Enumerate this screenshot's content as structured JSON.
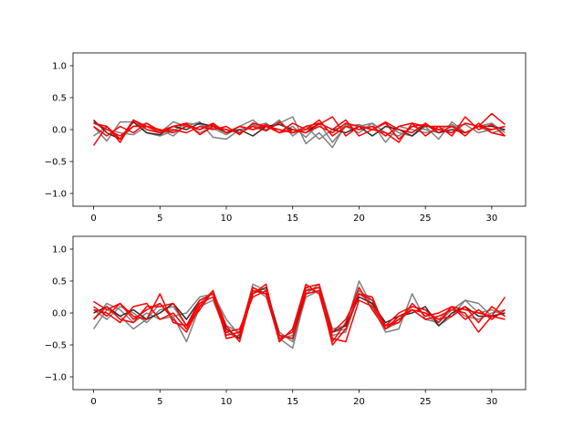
{
  "chart_data": [
    {
      "type": "line",
      "xlim": [
        -1.55,
        32.55
      ],
      "ylim": [
        -1.2,
        1.2
      ],
      "xticks": [
        0,
        5,
        10,
        15,
        20,
        25,
        30
      ],
      "xtick_labels": [
        "0",
        "5",
        "10",
        "15",
        "20",
        "25",
        "30"
      ],
      "yticks": [
        -1.0,
        -0.5,
        0.0,
        0.5,
        1.0
      ],
      "ytick_labels": [
        "−1.0",
        "−0.5",
        "0.0",
        "0.5",
        "1.0"
      ],
      "grid": false,
      "series": [
        {
          "color": "#808080",
          "values": [
            0.05,
            -0.18,
            0.12,
            0.12,
            -0.05,
            -0.1,
            -0.02,
            0.1,
            0.08,
            0.02,
            -0.08,
            0.05,
            0.15,
            -0.02,
            0.1,
            0.2,
            -0.22,
            -0.05,
            -0.28,
            0.08,
            0.05,
            0.1,
            -0.2,
            0.05,
            0.0,
            -0.05,
            0.0,
            0.08,
            -0.05,
            0.05,
            -0.05,
            0.0
          ]
        },
        {
          "color": "#808080",
          "values": [
            -0.1,
            0.05,
            -0.15,
            0.05,
            0.1,
            -0.05,
            0.12,
            0.05,
            0.12,
            -0.12,
            -0.15,
            0.0,
            0.05,
            0.1,
            -0.05,
            0.05,
            -0.12,
            0.1,
            -0.2,
            0.05,
            0.08,
            0.0,
            0.1,
            -0.05,
            -0.1,
            0.05,
            -0.15,
            0.12,
            -0.05,
            0.05,
            0.1,
            -0.05
          ]
        },
        {
          "color": "#808080",
          "values": [
            0.1,
            0.0,
            -0.05,
            -0.08,
            0.05,
            0.0,
            -0.1,
            0.08,
            -0.05,
            0.05,
            0.0,
            -0.05,
            0.08,
            0.0,
            0.15,
            -0.1,
            0.05,
            -0.15,
            0.0,
            0.05,
            -0.05,
            0.1,
            -0.05,
            -0.1,
            0.05,
            0.0,
            -0.05,
            0.05,
            0.08,
            -0.05,
            0.0,
            0.05
          ]
        },
        {
          "color": "#2b2b2b",
          "values": [
            0.15,
            -0.05,
            -0.15,
            0.12,
            -0.05,
            -0.08,
            0.05,
            0.0,
            0.1,
            0.05,
            -0.05,
            0.0,
            -0.1,
            0.05,
            0.08,
            0.0,
            -0.05,
            0.1,
            0.0,
            -0.05,
            0.05,
            -0.1,
            0.05,
            0.0,
            -0.1,
            0.08,
            -0.05,
            0.0,
            -0.05,
            0.05,
            0.05,
            0.0
          ]
        },
        {
          "color": "#ff0000",
          "values": [
            0.1,
            0.05,
            -0.15,
            0.15,
            0.05,
            0.0,
            -0.05,
            0.05,
            0.0,
            0.1,
            -0.05,
            0.05,
            0.0,
            0.08,
            -0.05,
            0.1,
            0.0,
            0.08,
            0.2,
            -0.1,
            0.05,
            0.0,
            0.1,
            -0.15,
            0.05,
            0.08,
            0.0,
            -0.05,
            0.1,
            0.05,
            0.0,
            0.05
          ]
        },
        {
          "color": "#ff0000",
          "values": [
            -0.25,
            0.05,
            -0.2,
            0.15,
            0.0,
            -0.05,
            0.05,
            0.1,
            -0.08,
            0.05,
            0.0,
            -0.05,
            0.05,
            -0.02,
            0.12,
            -0.05,
            0.05,
            0.1,
            0.0,
            0.15,
            -0.1,
            0.0,
            -0.05,
            -0.2,
            0.1,
            0.05,
            0.05,
            -0.1,
            0.2,
            0.0,
            0.08,
            -0.1
          ]
        },
        {
          "color": "#ff0000",
          "values": [
            0.05,
            -0.1,
            0.05,
            -0.05,
            0.1,
            -0.02,
            0.05,
            0.08,
            0.0,
            0.08,
            -0.05,
            0.05,
            0.0,
            0.05,
            -0.05,
            0.0,
            -0.05,
            0.05,
            -0.05,
            0.1,
            0.05,
            0.0,
            0.12,
            0.0,
            -0.05,
            0.1,
            -0.05,
            0.05,
            -0.05,
            0.05,
            0.25,
            0.08
          ]
        },
        {
          "color": "#ff0000",
          "values": [
            0.12,
            0.0,
            -0.1,
            0.05,
            0.05,
            -0.05,
            0.0,
            -0.05,
            0.05,
            0.0,
            0.05,
            -0.08,
            0.1,
            0.05,
            0.0,
            -0.05,
            0.0,
            0.15,
            -0.1,
            0.05,
            0.0,
            0.05,
            -0.1,
            0.05,
            0.1,
            -0.1,
            0.05,
            0.05,
            -0.1,
            0.1,
            -0.05,
            -0.1
          ]
        }
      ]
    },
    {
      "type": "line",
      "xlim": [
        -1.55,
        32.55
      ],
      "ylim": [
        -1.2,
        1.2
      ],
      "xticks": [
        0,
        5,
        10,
        15,
        20,
        25,
        30
      ],
      "xtick_labels": [
        "0",
        "5",
        "10",
        "15",
        "20",
        "25",
        "30"
      ],
      "yticks": [
        -1.0,
        -0.5,
        0.0,
        0.5,
        1.0
      ],
      "ytick_labels": [
        "−1.0",
        "−0.5",
        "0.0",
        "0.5",
        "1.0"
      ],
      "grid": false,
      "series": [
        {
          "color": "#808080",
          "values": [
            -0.25,
            0.05,
            -0.05,
            -0.25,
            -0.1,
            0.15,
            -0.05,
            -0.45,
            0.1,
            0.2,
            -0.3,
            -0.4,
            0.4,
            0.25,
            -0.4,
            -0.55,
            0.3,
            0.45,
            -0.25,
            -0.2,
            0.5,
            0.1,
            -0.3,
            -0.25,
            0.3,
            -0.1,
            -0.15,
            0.05,
            0.2,
            0.15,
            -0.05,
            0.0
          ]
        },
        {
          "color": "#808080",
          "values": [
            -0.1,
            0.15,
            0.05,
            -0.15,
            0.0,
            -0.1,
            -0.05,
            0.0,
            0.25,
            0.3,
            -0.1,
            -0.35,
            0.45,
            0.35,
            -0.3,
            -0.45,
            0.25,
            0.35,
            -0.3,
            -0.25,
            0.35,
            0.2,
            -0.2,
            -0.1,
            0.05,
            0.0,
            -0.2,
            -0.05,
            0.2,
            0.0,
            0.05,
            -0.05
          ]
        },
        {
          "color": "#808080",
          "values": [
            0.05,
            -0.1,
            0.1,
            0.0,
            -0.15,
            0.05,
            0.1,
            -0.2,
            0.15,
            0.35,
            -0.2,
            -0.3,
            0.35,
            0.3,
            -0.4,
            -0.35,
            0.4,
            0.3,
            -0.35,
            -0.3,
            0.3,
            0.15,
            -0.25,
            -0.15,
            0.1,
            0.05,
            -0.1,
            0.1,
            -0.05,
            -0.1,
            0.0,
            0.05
          ]
        },
        {
          "color": "#2b2b2b",
          "values": [
            0.0,
            0.1,
            -0.05,
            0.05,
            -0.1,
            0.0,
            0.15,
            -0.1,
            0.2,
            0.3,
            -0.25,
            -0.4,
            0.3,
            0.4,
            -0.35,
            -0.4,
            0.35,
            0.4,
            -0.3,
            -0.2,
            0.25,
            0.15,
            -0.15,
            -0.05,
            0.0,
            0.1,
            -0.2,
            0.0,
            0.1,
            -0.05,
            -0.05,
            0.0
          ]
        },
        {
          "color": "#ff0000",
          "values": [
            0.18,
            0.05,
            0.15,
            -0.1,
            0.05,
            0.15,
            -0.1,
            -0.3,
            0.1,
            0.35,
            -0.4,
            -0.35,
            0.3,
            0.45,
            -0.45,
            -0.25,
            0.45,
            0.3,
            -0.45,
            -0.15,
            0.4,
            0.05,
            -0.25,
            -0.05,
            0.05,
            0.0,
            -0.1,
            -0.05,
            0.1,
            -0.15,
            0.1,
            -0.05
          ]
        },
        {
          "color": "#ff0000",
          "values": [
            -0.1,
            0.1,
            -0.1,
            -0.15,
            0.1,
            0.1,
            0.15,
            -0.2,
            0.05,
            0.35,
            -0.3,
            -0.25,
            0.25,
            0.35,
            -0.4,
            -0.3,
            0.4,
            0.45,
            -0.4,
            -0.45,
            0.2,
            0.1,
            -0.2,
            -0.15,
            0.15,
            -0.05,
            0.0,
            0.1,
            -0.1,
            0.05,
            -0.1,
            0.05
          ]
        },
        {
          "color": "#ff0000",
          "values": [
            0.1,
            -0.05,
            0.15,
            -0.05,
            -0.1,
            0.3,
            -0.15,
            -0.2,
            0.2,
            0.3,
            -0.2,
            -0.45,
            0.35,
            0.3,
            -0.45,
            -0.25,
            0.35,
            0.4,
            -0.3,
            -0.1,
            0.3,
            0.2,
            -0.2,
            0.0,
            0.1,
            0.05,
            -0.15,
            0.1,
            0.05,
            0.0,
            -0.05,
            -0.1
          ]
        },
        {
          "color": "#ff0000",
          "values": [
            0.05,
            0.0,
            -0.15,
            0.1,
            0.15,
            -0.1,
            0.0,
            -0.25,
            0.15,
            0.25,
            -0.35,
            -0.3,
            0.4,
            0.3,
            -0.35,
            -0.4,
            0.3,
            0.35,
            -0.5,
            -0.25,
            0.3,
            0.25,
            -0.25,
            -0.1,
            0.05,
            -0.1,
            -0.05,
            0.05,
            0.0,
            -0.3,
            -0.05,
            0.25
          ]
        }
      ]
    }
  ]
}
